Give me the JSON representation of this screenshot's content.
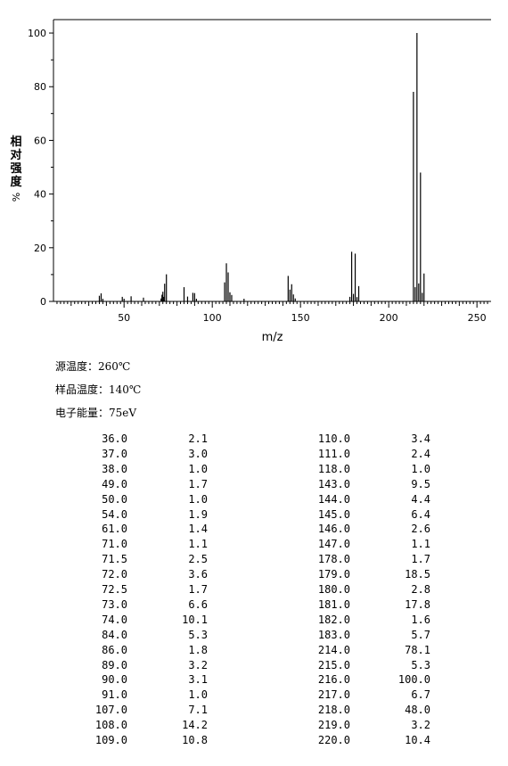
{
  "chart_data": {
    "type": "bar",
    "xlabel": "m/z",
    "ylabel": "相对强度",
    "ylabel_unit": "%",
    "xlim": [
      10,
      258
    ],
    "ylim": [
      0,
      105
    ],
    "x_ticks": [
      50,
      100,
      150,
      200,
      250
    ],
    "y_ticks": [
      0,
      20,
      40,
      60,
      80,
      100
    ],
    "x": [
      36.0,
      37.0,
      38.0,
      49.0,
      50.0,
      54.0,
      61.0,
      71.0,
      71.5,
      72.0,
      72.5,
      73.0,
      74.0,
      84.0,
      86.0,
      89.0,
      90.0,
      91.0,
      107.0,
      108.0,
      109.0,
      110.0,
      111.0,
      118.0,
      143.0,
      144.0,
      145.0,
      146.0,
      147.0,
      178.0,
      179.0,
      180.0,
      181.0,
      182.0,
      183.0,
      214.0,
      215.0,
      216.0,
      217.0,
      218.0,
      219.0,
      220.0
    ],
    "values": [
      2.1,
      3.0,
      1.0,
      1.7,
      1.0,
      1.9,
      1.4,
      1.1,
      2.5,
      3.6,
      1.7,
      6.6,
      10.1,
      5.3,
      1.8,
      3.2,
      3.1,
      1.0,
      7.1,
      14.2,
      10.8,
      3.4,
      2.4,
      1.0,
      9.5,
      4.4,
      6.4,
      2.6,
      1.1,
      1.7,
      18.5,
      2.8,
      17.8,
      1.6,
      5.7,
      78.1,
      5.3,
      100.0,
      6.7,
      48.0,
      3.2,
      10.4
    ]
  },
  "conditions": [
    "源温度：260℃",
    "样品温度：140℃",
    "电子能量：75eV"
  ],
  "table": {
    "left": [
      [
        "36.0",
        "2.1"
      ],
      [
        "37.0",
        "3.0"
      ],
      [
        "38.0",
        "1.0"
      ],
      [
        "49.0",
        "1.7"
      ],
      [
        "50.0",
        "1.0"
      ],
      [
        "54.0",
        "1.9"
      ],
      [
        "61.0",
        "1.4"
      ],
      [
        "71.0",
        "1.1"
      ],
      [
        "71.5",
        "2.5"
      ],
      [
        "72.0",
        "3.6"
      ],
      [
        "72.5",
        "1.7"
      ],
      [
        "73.0",
        "6.6"
      ],
      [
        "74.0",
        "10.1"
      ],
      [
        "84.0",
        "5.3"
      ],
      [
        "86.0",
        "1.8"
      ],
      [
        "89.0",
        "3.2"
      ],
      [
        "90.0",
        "3.1"
      ],
      [
        "91.0",
        "1.0"
      ],
      [
        "107.0",
        "7.1"
      ],
      [
        "108.0",
        "14.2"
      ],
      [
        "109.0",
        "10.8"
      ]
    ],
    "right": [
      [
        "110.0",
        "3.4"
      ],
      [
        "111.0",
        "2.4"
      ],
      [
        "118.0",
        "1.0"
      ],
      [
        "143.0",
        "9.5"
      ],
      [
        "144.0",
        "4.4"
      ],
      [
        "145.0",
        "6.4"
      ],
      [
        "146.0",
        "2.6"
      ],
      [
        "147.0",
        "1.1"
      ],
      [
        "178.0",
        "1.7"
      ],
      [
        "179.0",
        "18.5"
      ],
      [
        "180.0",
        "2.8"
      ],
      [
        "181.0",
        "17.8"
      ],
      [
        "182.0",
        "1.6"
      ],
      [
        "183.0",
        "5.7"
      ],
      [
        "214.0",
        "78.1"
      ],
      [
        "215.0",
        "5.3"
      ],
      [
        "216.0",
        "100.0"
      ],
      [
        "217.0",
        "6.7"
      ],
      [
        "218.0",
        "48.0"
      ],
      [
        "219.0",
        "3.2"
      ],
      [
        "220.0",
        "10.4"
      ]
    ]
  }
}
